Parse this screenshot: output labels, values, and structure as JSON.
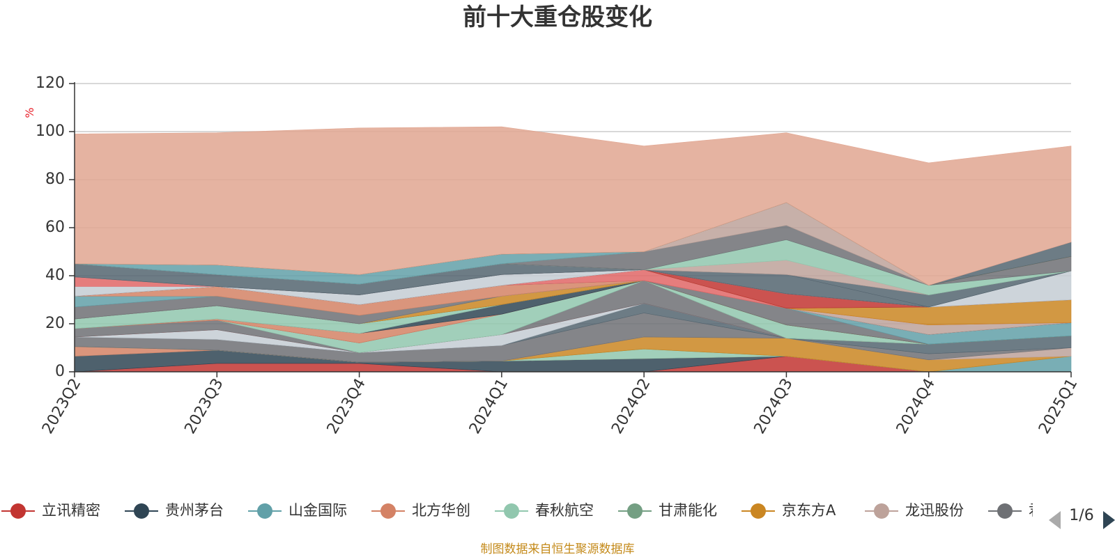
{
  "chart_data": {
    "type": "area",
    "stacked": true,
    "title": "前十大重仓股变化",
    "y_unit": "%",
    "ylim": [
      0,
      120
    ],
    "yticks": [
      0,
      20,
      40,
      60,
      80,
      100,
      120
    ],
    "x": [
      "2023Q2",
      "2023Q3",
      "2023Q4",
      "2024Q1",
      "2024Q2",
      "2024Q3",
      "2024Q4",
      "2025Q1"
    ],
    "series": [
      {
        "name": "立讯精密",
        "color": "#c23531",
        "values": [
          0,
          3.5,
          3.5,
          0,
          0,
          6.5,
          0,
          0
        ]
      },
      {
        "name": "贵州茅台",
        "color": "#2f4554",
        "values": [
          6.5,
          5.5,
          0.5,
          4.5,
          5.5,
          0,
          0,
          0
        ]
      },
      {
        "name": "山金国际",
        "color": "#61a0a8",
        "values": [
          0,
          0,
          0,
          0,
          0,
          0,
          0,
          6.5
        ]
      },
      {
        "name": "北方华创",
        "color": "#d48265",
        "values": [
          4,
          0,
          0,
          0,
          0,
          0,
          0,
          0
        ]
      },
      {
        "name": "春秋航空",
        "color": "#91c7ae",
        "values": [
          0,
          0,
          0,
          0,
          4,
          0,
          0,
          0
        ]
      },
      {
        "name": "甘肃能化",
        "color": "#749f83",
        "values": [
          0,
          0,
          0,
          0,
          0,
          0,
          0,
          0
        ]
      },
      {
        "name": "京东方A",
        "color": "#ca8622",
        "values": [
          0,
          0,
          0,
          0,
          5,
          7.5,
          5,
          0
        ]
      },
      {
        "name": "龙迅股份",
        "color": "#bda29a",
        "values": [
          0,
          0,
          0,
          0,
          0,
          0,
          0,
          3.5
        ]
      },
      {
        "name": "",
        "color": "#6e7074",
        "values": [
          4,
          4.5,
          4,
          6.5,
          10,
          0,
          2.5,
          0
        ]
      },
      {
        "name": "",
        "color": "#546570",
        "values": [
          0,
          0,
          0,
          0,
          4,
          0,
          4,
          5
        ]
      },
      {
        "name": "",
        "color": "#c4ccd3",
        "values": [
          0,
          4,
          0,
          4.5,
          0,
          0,
          0,
          0
        ]
      },
      {
        "name": "",
        "color": "#e06666",
        "values": [
          0,
          0,
          0,
          0,
          0,
          0,
          0,
          0
        ]
      },
      {
        "name": "",
        "color": "#6e7074",
        "values": [
          3.5,
          4,
          0,
          0,
          9.5,
          0,
          0,
          0
        ]
      },
      {
        "name": "",
        "color": "#91c7ae",
        "values": [
          0,
          0,
          4,
          8.5,
          0,
          0,
          0,
          0
        ]
      },
      {
        "name": "",
        "color": "#c23531",
        "values": [
          0,
          0,
          0,
          0,
          0,
          0,
          0,
          0
        ]
      },
      {
        "name": "",
        "color": "#d48265",
        "values": [
          0,
          0.5,
          4,
          0,
          0,
          0,
          0,
          0
        ]
      },
      {
        "name": "",
        "color": "#2f4554",
        "values": [
          0,
          0,
          0,
          4,
          0,
          0,
          0,
          0
        ]
      },
      {
        "name": "",
        "color": "#c4ccd3",
        "values": [
          0,
          0,
          0,
          0,
          0,
          0,
          0,
          0
        ]
      },
      {
        "name": "",
        "color": "#6e7074",
        "values": [
          0,
          0,
          0,
          0,
          0,
          0,
          0,
          0
        ]
      },
      {
        "name": "",
        "color": "#91c7ae",
        "values": [
          4,
          5.5,
          4,
          0,
          0,
          5.5,
          0,
          0
        ]
      },
      {
        "name": "",
        "color": "#546570",
        "values": [
          0,
          0,
          0,
          0,
          0,
          0,
          0,
          0
        ]
      },
      {
        "name": "",
        "color": "#ca8622",
        "values": [
          0,
          0,
          0,
          3.5,
          0,
          0,
          0,
          0
        ]
      },
      {
        "name": "",
        "color": "#6e7074",
        "values": [
          0,
          0,
          0,
          0,
          0,
          7,
          0,
          0
        ]
      },
      {
        "name": "",
        "color": "#61a0a8",
        "values": [
          0,
          0,
          0,
          0,
          0,
          0,
          4,
          5.5
        ]
      },
      {
        "name": "",
        "color": "#bda29a",
        "values": [
          0,
          0,
          0,
          0,
          0,
          0,
          0,
          0
        ]
      },
      {
        "name": "",
        "color": "#6e7074",
        "values": [
          5,
          4,
          3.5,
          0,
          0,
          0,
          0,
          0
        ]
      },
      {
        "name": "",
        "color": "#61a0a8",
        "values": [
          4.5,
          0,
          0,
          0,
          0,
          0,
          0,
          0
        ]
      },
      {
        "name": "",
        "color": "#d48265",
        "values": [
          0,
          4,
          4.5,
          4.5,
          0,
          0,
          0,
          0
        ]
      },
      {
        "name": "",
        "color": "#2f4554",
        "values": [
          0,
          0,
          0,
          0,
          0,
          0,
          0,
          0
        ]
      },
      {
        "name": "",
        "color": "#bda29a",
        "values": [
          0,
          0,
          0,
          0,
          0,
          0,
          4,
          0
        ]
      },
      {
        "name": "",
        "color": "#e06666",
        "values": [
          0,
          0,
          0,
          0,
          4.5,
          0,
          0,
          0
        ]
      },
      {
        "name": "",
        "color": "#ca8622",
        "values": [
          0,
          0,
          0,
          0,
          0,
          0,
          7.5,
          9.5
        ]
      },
      {
        "name": "",
        "color": "#6e7074",
        "values": [
          0,
          0,
          0,
          0,
          0,
          0,
          0,
          0
        ]
      },
      {
        "name": "",
        "color": "#c23531",
        "values": [
          0,
          0,
          0,
          0,
          0,
          6,
          0,
          0
        ]
      },
      {
        "name": "",
        "color": "#6e7074",
        "values": [
          0,
          0,
          0,
          0,
          0,
          0,
          0,
          0
        ]
      },
      {
        "name": "",
        "color": "#c4ccd3",
        "values": [
          4,
          0,
          4,
          4.5,
          0,
          0,
          0,
          0
        ]
      },
      {
        "name": "",
        "color": "#e06666",
        "values": [
          4,
          0,
          0,
          0,
          0,
          0,
          0,
          0
        ]
      },
      {
        "name": "",
        "color": "#546570",
        "values": [
          0,
          0,
          0,
          0,
          0,
          8,
          0,
          0
        ]
      },
      {
        "name": "",
        "color": "#c4ccd3",
        "values": [
          0,
          0,
          0,
          0,
          0,
          0,
          0,
          12
        ]
      },
      {
        "name": "",
        "color": "#6e7074",
        "values": [
          0,
          0,
          0,
          0,
          0,
          0,
          0,
          0
        ]
      },
      {
        "name": "",
        "color": "#546570",
        "values": [
          5.5,
          5,
          4.5,
          4.5,
          0,
          0,
          5,
          0
        ]
      },
      {
        "name": "",
        "color": "#bda29a",
        "values": [
          0,
          0,
          0,
          0,
          0,
          6,
          0,
          0
        ]
      },
      {
        "name": "",
        "color": "#91c7ae",
        "values": [
          0,
          0,
          0,
          0,
          0,
          8.5,
          4,
          0
        ]
      },
      {
        "name": "",
        "color": "#6e7074",
        "values": [
          0,
          0,
          0,
          0,
          7.5,
          6,
          0,
          6
        ]
      },
      {
        "name": "",
        "color": "#bda29a",
        "values": [
          0,
          0,
          0,
          0,
          0,
          9.5,
          0,
          0
        ]
      },
      {
        "name": "",
        "color": "#61a0a8",
        "values": [
          0,
          4,
          4,
          4,
          0,
          0,
          0,
          0
        ]
      },
      {
        "name": "",
        "color": "#ca8622",
        "values": [
          0,
          0,
          0,
          0,
          0,
          0,
          0,
          0
        ]
      },
      {
        "name": "",
        "color": "#546570",
        "values": [
          0,
          0,
          0,
          0,
          0,
          0,
          0,
          6
        ]
      },
      {
        "name": "",
        "color": "#e1a691",
        "values": [
          54,
          55,
          61,
          53,
          44,
          29,
          51,
          40
        ]
      }
    ],
    "legend_visible": [
      "立讯精密",
      "贵州茅台",
      "山金国际",
      "北方华创",
      "春秋航空",
      "甘肃能化",
      "京东方A",
      "龙迅股份"
    ],
    "legend_truncated_text": "君",
    "legend_page": "1/6",
    "legend_position": "bottom",
    "grid": true
  },
  "footer_text": "制图数据来自恒生聚源数据库"
}
